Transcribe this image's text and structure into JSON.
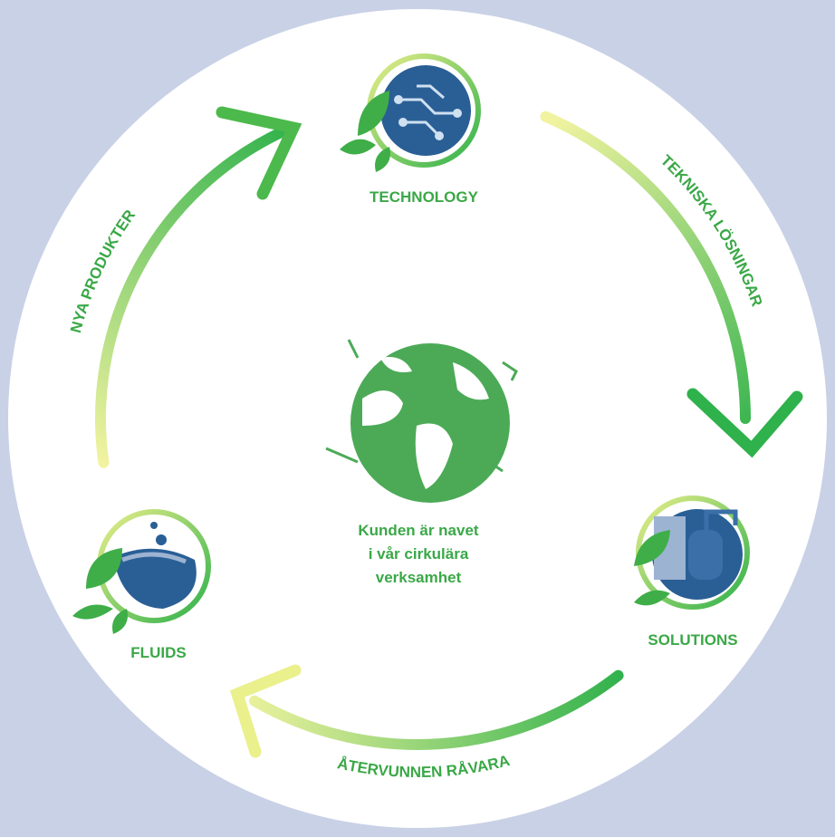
{
  "nodes": [
    {
      "label": "TECHNOLOGY"
    },
    {
      "label": "SOLUTIONS"
    },
    {
      "label": "FLUIDS"
    }
  ],
  "flows": [
    {
      "label": "TEKNISKA LÖSNINGAR"
    },
    {
      "label": "ÅTERVUNNEN RÅVARA"
    },
    {
      "label": "NYA PRODUKTER"
    }
  ],
  "center": {
    "lines": [
      "Kunden är navet",
      "i vår cirkulära",
      "verksamhet"
    ]
  }
}
